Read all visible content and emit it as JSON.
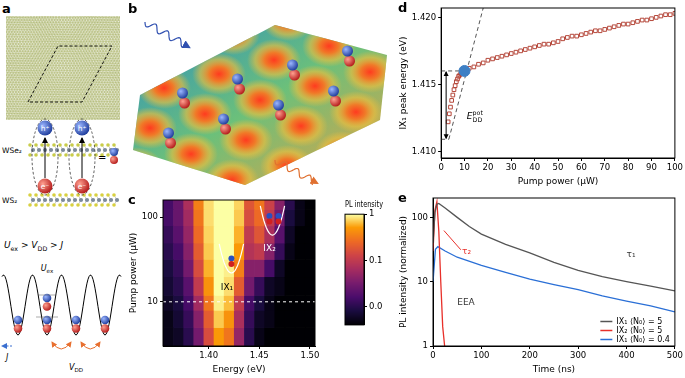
{
  "diagrams": {
    "a": {
      "label": "a",
      "layers": [
        "WSe₂",
        "WS₂"
      ],
      "hole": "h⁺",
      "electron": "e⁻",
      "equals": "=",
      "inequality": [
        {
          "t": "U",
          "sub": "ex"
        },
        {
          "t": " > "
        },
        {
          "t": "V",
          "sub": "DD"
        },
        {
          "t": " > "
        },
        {
          "t": "J"
        }
      ],
      "onsite": [
        {
          "t": "U",
          "sub": "ex"
        }
      ],
      "hopping": [
        {
          "t": "J"
        }
      ],
      "interaction": [
        {
          "t": "V",
          "sub": "DD"
        }
      ]
    },
    "b": {
      "label": "b"
    }
  },
  "chart_data": [
    {
      "panel": "c",
      "type": "heatmap",
      "x_label": "Energy (eV)",
      "y_label": "Pump power (μW)",
      "log": "y",
      "grid": false,
      "xlim": [
        1.355,
        1.505
      ],
      "xticks": [
        {
          "value": 1.4,
          "label": "1.40"
        },
        {
          "value": 1.45,
          "label": "1.45"
        },
        {
          "value": 1.5,
          "label": "1.50"
        }
      ],
      "ylim": [
        3,
        160
      ],
      "yticks": [
        10,
        100
      ],
      "x_bins": [
        1.355,
        1.365,
        1.375,
        1.385,
        1.395,
        1.405,
        1.415,
        1.425,
        1.435,
        1.445,
        1.455,
        1.465,
        1.475,
        1.485,
        1.495,
        1.505
      ],
      "y_bins": [
        3,
        5,
        8,
        12,
        20,
        32,
        50,
        80,
        125,
        160
      ],
      "cells": [
        [
          0.005,
          0.006,
          0.01,
          0.03,
          0.15,
          0.5,
          0.3,
          0.05,
          0.01,
          0.005,
          0.004,
          0.004,
          0.004,
          0.004,
          0.004
        ],
        [
          0.005,
          0.007,
          0.012,
          0.04,
          0.2,
          0.7,
          0.45,
          0.07,
          0.012,
          0.006,
          0.005,
          0.004,
          0.004,
          0.004,
          0.004
        ],
        [
          0.006,
          0.008,
          0.015,
          0.06,
          0.3,
          0.9,
          0.65,
          0.1,
          0.015,
          0.008,
          0.005,
          0.004,
          0.004,
          0.004,
          0.004
        ],
        [
          0.007,
          0.01,
          0.02,
          0.1,
          0.45,
          1,
          0.8,
          0.2,
          0.03,
          0.012,
          0.006,
          0.005,
          0.004,
          0.004,
          0.004
        ],
        [
          0.008,
          0.012,
          0.03,
          0.15,
          0.6,
          1,
          0.9,
          0.35,
          0.04,
          0.04,
          0.015,
          0.006,
          0.004,
          0.004,
          0.004
        ],
        [
          0.01,
          0.015,
          0.04,
          0.2,
          0.7,
          1,
          1,
          0.5,
          0.08,
          0.1,
          0.04,
          0.012,
          0.005,
          0.004,
          0.004
        ],
        [
          0.012,
          0.02,
          0.05,
          0.25,
          0.75,
          1,
          1,
          0.6,
          0.1,
          0.18,
          0.07,
          0.02,
          0.006,
          0.004,
          0.004
        ],
        [
          0.015,
          0.025,
          0.06,
          0.3,
          0.8,
          1,
          1,
          0.7,
          0.15,
          0.25,
          0.1,
          0.03,
          0.008,
          0.005,
          0.004
        ],
        [
          0.015,
          0.025,
          0.07,
          0.35,
          0.8,
          1,
          1,
          0.75,
          0.18,
          0.3,
          0.12,
          0.04,
          0.01,
          0.005,
          0.004
        ]
      ],
      "colorbar": {
        "title": "PL intensity",
        "log": true,
        "range": [
          0.004,
          1
        ],
        "ticks": [
          1,
          0.1,
          0.01
        ]
      },
      "reference_line": 10,
      "annotations": [
        "IX₁",
        "IX₂"
      ]
    },
    {
      "panel": "d",
      "type": "scatter",
      "x_label": "Pump power (μW)",
      "y_label": "IX₁ peak energy (eV)",
      "grid": false,
      "xlim": [
        0,
        100
      ],
      "xticks": [
        0,
        10,
        20,
        30,
        40,
        50,
        60,
        70,
        80,
        90,
        100
      ],
      "ylim": [
        1.4095,
        1.4207
      ],
      "yticks": [
        {
          "value": 1.41,
          "label": "1.410"
        },
        {
          "value": 1.415,
          "label": "1.415"
        },
        {
          "value": 1.42,
          "label": "1.420"
        }
      ],
      "series": [
        {
          "type": "scatter",
          "marker": "square",
          "color": "#b5473a",
          "x": [
            3,
            3.5,
            4,
            4.5,
            5,
            5.5,
            6,
            6.5,
            7,
            7.5,
            8,
            8.5,
            9,
            10,
            12,
            14,
            16,
            18,
            20,
            22,
            24,
            26,
            28,
            30,
            32,
            34,
            36,
            38,
            40,
            42,
            44,
            46,
            48,
            50,
            52,
            54,
            56,
            58,
            60,
            62,
            64,
            66,
            68,
            70,
            72,
            74,
            76,
            78,
            80,
            82,
            84,
            86,
            88,
            90,
            92,
            94,
            96,
            98,
            100
          ],
          "values": [
            1.4122,
            1.4128,
            1.4133,
            1.4138,
            1.4142,
            1.4146,
            1.4149,
            1.4152,
            1.4154,
            1.4156,
            1.4157,
            1.4158,
            1.4159,
            1.416,
            1.4162,
            1.4163,
            1.4165,
            1.4166,
            1.4168,
            1.4169,
            1.417,
            1.4171,
            1.4172,
            1.4173,
            1.4174,
            1.4175,
            1.4176,
            1.4177,
            1.4178,
            1.4179,
            1.418,
            1.418,
            1.4181,
            1.4182,
            1.4184,
            1.4185,
            1.4186,
            1.4186,
            1.4187,
            1.4188,
            1.4189,
            1.419,
            1.419,
            1.4191,
            1.4192,
            1.4193,
            1.4194,
            1.4195,
            1.4195,
            1.4196,
            1.4197,
            1.4198,
            1.4198,
            1.4199,
            1.42,
            1.4201,
            1.4202,
            1.4202,
            1.4203
          ]
        },
        {
          "type": "scatter",
          "marker": "circle",
          "color": "#3d7fc4",
          "x": [
            10
          ],
          "values": [
            1.416
          ]
        },
        {
          "type": "line",
          "line_style": "dashed",
          "color": "#555555",
          "x": [
            3.3,
            18
          ],
          "values": [
            1.4109,
            1.4207
          ]
        },
        {
          "type": "line",
          "line_style": "dashed",
          "color": "#555555",
          "x": [
            0,
            10
          ],
          "values": [
            1.416,
            1.416
          ]
        },
        {
          "type": "line",
          "line_style": "dashed",
          "color": "#555555",
          "x": [
            0,
            3.3
          ],
          "values": [
            1.4109,
            1.4109
          ]
        }
      ],
      "annotation": [
        {
          "t": "E",
          "sup": "pot",
          "sub": "DD"
        }
      ]
    },
    {
      "panel": "e",
      "type": "line",
      "x_label": "Time (ns)",
      "y_label": "PL intensity (normalized)",
      "log": "y",
      "grid": false,
      "legend": "lower right",
      "xlim": [
        0,
        500
      ],
      "xticks": [
        0,
        100,
        200,
        300,
        400,
        500
      ],
      "ylim": [
        1,
        200
      ],
      "yticks": [
        1,
        10,
        100
      ],
      "series": [
        {
          "name": "IX₁ ⟨N₀⟩ = 5",
          "color": "#555555",
          "x": [
            0,
            4,
            8,
            12,
            25,
            50,
            75,
            100,
            150,
            200,
            250,
            300,
            350,
            400,
            450,
            500
          ],
          "values": [
            40,
            120,
            160,
            165,
            140,
            100,
            72,
            55,
            38,
            28,
            20,
            15,
            12,
            10,
            8.5,
            7.2
          ]
        },
        {
          "name": "IX₂ ⟨N₀⟩ = 5",
          "color": "#e8302a",
          "x": [
            0,
            4,
            8,
            12,
            16,
            20,
            24
          ],
          "values": [
            30,
            130,
            175,
            60,
            10,
            2,
            1
          ]
        },
        {
          "name": "IX₁ ⟨N₀⟩ = 0.4",
          "color": "#2a6fd6",
          "x": [
            0,
            5,
            10,
            25,
            50,
            100,
            150,
            200,
            250,
            300,
            350,
            400,
            450,
            500
          ],
          "values": [
            10,
            32,
            35,
            30,
            24,
            18,
            14,
            11,
            9,
            7.5,
            6,
            5,
            4.2,
            3.4
          ]
        }
      ],
      "annotations": [
        "τ₁",
        "τ₂",
        "EEA"
      ]
    }
  ]
}
